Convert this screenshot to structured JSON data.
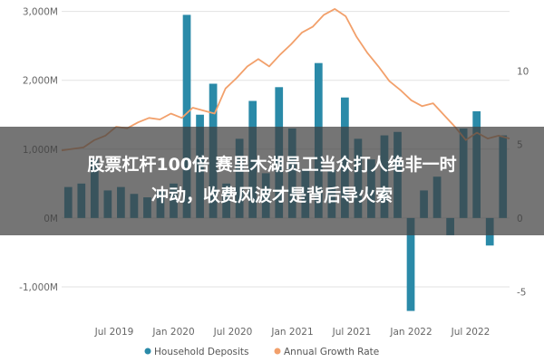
{
  "chart_data": {
    "type": "bar+line",
    "series": [
      {
        "name": "Household Deposits",
        "type": "bar",
        "axis": "left",
        "color": "#2a8aa8",
        "values": [
          450,
          500,
          850,
          400,
          450,
          350,
          300,
          400,
          500,
          2950,
          1500,
          1950,
          500,
          1150,
          1700,
          650,
          1900,
          1300,
          700,
          2250,
          700,
          1750,
          1150,
          850,
          1200,
          1250,
          -1350,
          400,
          600,
          -250,
          1300,
          1550,
          -400,
          1200
        ]
      },
      {
        "name": "Annual Growth Rate",
        "type": "line",
        "axis": "right",
        "color": "#f2a06b",
        "values": [
          4.6,
          4.7,
          4.8,
          5.3,
          5.6,
          6.2,
          6.1,
          6.5,
          6.8,
          6.7,
          7.1,
          6.8,
          7.5,
          7.3,
          7.1,
          8.8,
          9.5,
          10.3,
          10.8,
          10.3,
          11.1,
          11.8,
          12.6,
          13.0,
          13.8,
          14.2,
          13.7,
          12.3,
          11.2,
          10.3,
          9.3,
          8.7,
          8.0,
          7.6,
          7.8,
          7.0,
          6.2,
          5.3,
          5.8,
          5.4,
          5.6,
          5.4
        ]
      }
    ],
    "left_axis": {
      "ticks": [
        "-1,000M",
        "0M",
        "1,000M",
        "2,000M",
        "3,000M"
      ],
      "range": [
        -1500,
        3100
      ]
    },
    "right_axis": {
      "ticks": [
        "-5",
        "0",
        "5",
        "10"
      ],
      "range": [
        -7,
        14.5
      ]
    },
    "x_tick_labels": [
      "Jul 2019",
      "Jan 2020",
      "Jul 2020",
      "Jan 2021",
      "Jul 2021",
      "Jan 2022",
      "Jul 2022"
    ],
    "legend": [
      "Household Deposits",
      "Annual Growth Rate"
    ]
  },
  "banner": {
    "line1": "股票杠杆100倍 赛里木湖员工当众打人绝非一时",
    "line2": "冲动，收费风波才是背后导火索"
  }
}
